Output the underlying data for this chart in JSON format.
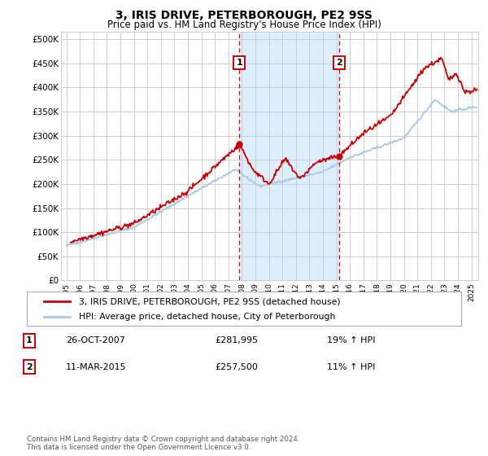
{
  "title": "3, IRIS DRIVE, PETERBOROUGH, PE2 9SS",
  "subtitle": "Price paid vs. HM Land Registry's House Price Index (HPI)",
  "ytick_values": [
    0,
    50000,
    100000,
    150000,
    200000,
    250000,
    300000,
    350000,
    400000,
    450000,
    500000
  ],
  "ylim": [
    0,
    515000
  ],
  "xlim_start": 1994.6,
  "xlim_end": 2025.5,
  "background_color": "#ffffff",
  "plot_bg_color": "#ffffff",
  "grid_color": "#cccccc",
  "hpi_color": "#a8c8e8",
  "price_color": "#cc0000",
  "sale1_x": 2007.82,
  "sale1_price": 281995,
  "sale2_x": 2015.19,
  "sale2_price": 257500,
  "highlight_color": "#ddeeff",
  "legend_label_price": "3, IRIS DRIVE, PETERBOROUGH, PE2 9SS (detached house)",
  "legend_label_hpi": "HPI: Average price, detached house, City of Peterborough",
  "annotation1_date": "26-OCT-2007",
  "annotation1_price": "£281,995",
  "annotation1_hpi": "19% ↑ HPI",
  "annotation2_date": "11-MAR-2015",
  "annotation2_price": "£257,500",
  "annotation2_hpi": "11% ↑ HPI",
  "footnote": "Contains HM Land Registry data © Crown copyright and database right 2024.\nThis data is licensed under the Open Government Licence v3.0."
}
